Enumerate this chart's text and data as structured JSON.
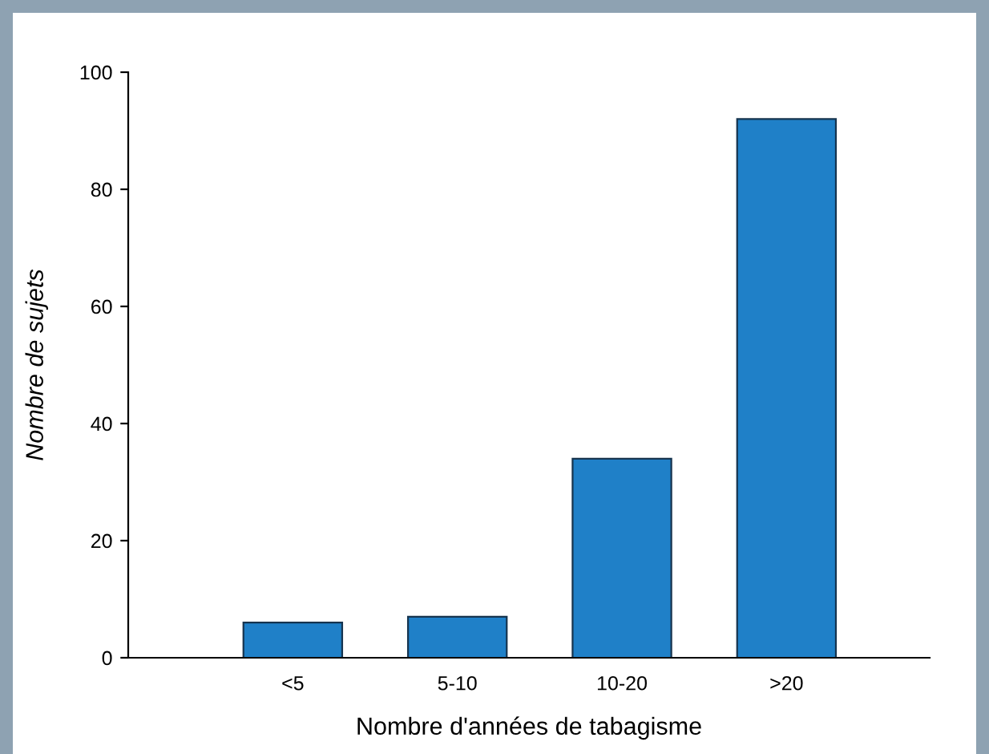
{
  "chart_data": {
    "type": "bar",
    "xlabel": "Nombre d'années de tabagisme",
    "ylabel": "Nombre de sujets",
    "categories": [
      "<5",
      "5-10",
      "10-20",
      ">20"
    ],
    "values": [
      6,
      7,
      34,
      92
    ],
    "color": "#1f80c8",
    "ylim": [
      0,
      100
    ],
    "yticks": [
      0,
      20,
      40,
      60,
      80,
      100
    ],
    "grid": false
  }
}
